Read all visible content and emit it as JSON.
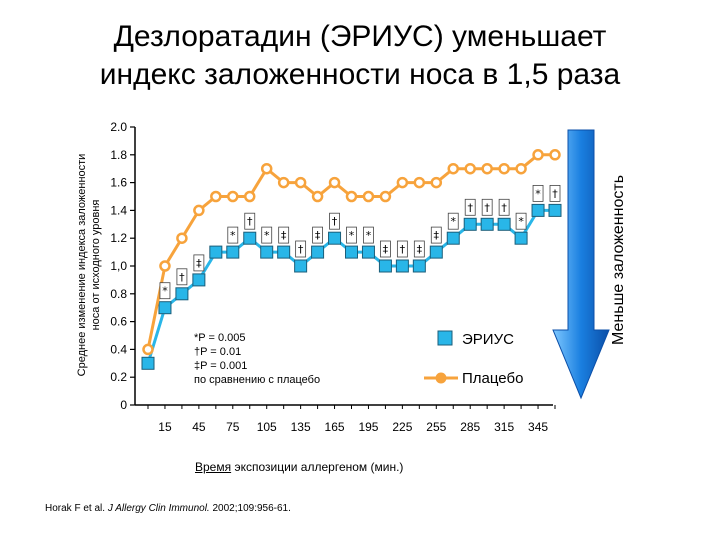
{
  "title_line1": "Дезлоратадин (ЭРИУС) уменьшает",
  "title_line2": "индекс заложенности носа в 1,5 раза",
  "y_axis_label_line1": "Среднее изменение индекса заложенности",
  "y_axis_label_line2": "носа от исходного уровня",
  "x_axis_label_underlined": "Время",
  "x_axis_label_rest": " экспозиции аллергеном (мин.)",
  "arrow_label": "Меньше заложенность",
  "footnote_authors": "Horak F et al. ",
  "footnote_journal": "J Allergy Clin Immunol.",
  "footnote_rest": " 2002;109:956-61.",
  "significance_notes": [
    "*P = 0.005",
    "†P = 0.01",
    "‡P = 0.001",
    "по сравнению с плацебо"
  ],
  "colors": {
    "erius": "#29b6e8",
    "placebo": "#f7a33c",
    "arrow": "#1a7fe0"
  },
  "chart_data": {
    "type": "line",
    "x": [
      0,
      15,
      30,
      45,
      60,
      75,
      90,
      105,
      120,
      135,
      150,
      165,
      180,
      195,
      210,
      225,
      240,
      255,
      270,
      285,
      300,
      315,
      330,
      345,
      360
    ],
    "x_tick_labels": [
      "15",
      "45",
      "75",
      "105",
      "135",
      "165",
      "195",
      "225",
      "255",
      "285",
      "315",
      "345"
    ],
    "y_tick_labels": [
      "0",
      "0.2",
      "0.4",
      "0.6",
      "0.8",
      "1,0",
      "1.2",
      "1.4",
      "1.6",
      "1.8",
      "2.0"
    ],
    "ylim": [
      0,
      2.0
    ],
    "legend_position": "lower-right",
    "series": [
      {
        "name": "ЭРИУС",
        "marker": "square",
        "values": [
          0.3,
          0.7,
          0.8,
          0.9,
          1.1,
          1.1,
          1.2,
          1.1,
          1.1,
          1.0,
          1.1,
          1.2,
          1.1,
          1.1,
          1.0,
          1.0,
          1.0,
          1.1,
          1.2,
          1.3,
          1.3,
          1.3,
          1.2,
          1.4,
          1.4
        ]
      },
      {
        "name": "Плацебо",
        "marker": "circle",
        "values": [
          0.4,
          1.0,
          1.2,
          1.4,
          1.5,
          1.5,
          1.5,
          1.7,
          1.6,
          1.6,
          1.5,
          1.6,
          1.5,
          1.5,
          1.5,
          1.6,
          1.6,
          1.6,
          1.7,
          1.7,
          1.7,
          1.7,
          1.7,
          1.8,
          1.8
        ]
      }
    ],
    "significance_marks": [
      "",
      "*",
      "†",
      "‡",
      "",
      "*",
      "†",
      "*",
      "‡",
      "†",
      "‡",
      "†",
      "*",
      "*",
      "‡",
      "†",
      "‡",
      "‡",
      "*",
      "†",
      "†",
      "†",
      "*",
      "*",
      "†"
    ]
  }
}
